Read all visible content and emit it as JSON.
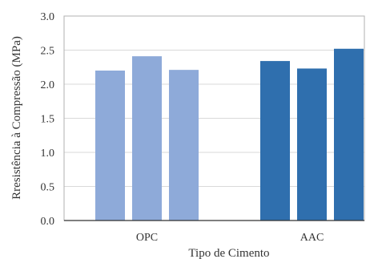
{
  "chart_data": {
    "type": "bar",
    "xlabel": "Tipo de Cimento",
    "ylabel": "Rresistência à Compressão (MPa)",
    "ylim": [
      0,
      3.0
    ],
    "yticks": [
      "0.0",
      "0.5",
      "1.0",
      "1.5",
      "2.0",
      "2.5",
      "3.0"
    ],
    "grid": true,
    "legend": "none",
    "groups": [
      {
        "category": "OPC",
        "color": "#8eaad9",
        "values": [
          2.2,
          2.41,
          2.21
        ]
      },
      {
        "category": "AAC",
        "color": "#2f6fae",
        "values": [
          2.34,
          2.23,
          2.52
        ]
      }
    ]
  }
}
